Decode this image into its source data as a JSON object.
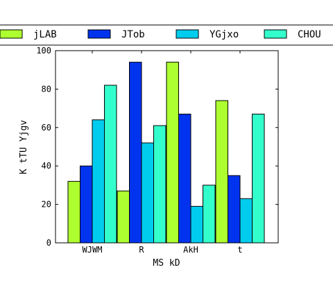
{
  "chart_data": {
    "type": "bar",
    "title": "",
    "xlabel": "MS kD",
    "ylabel": "K tTU Yjgv",
    "categories": [
      "WJWM",
      "R",
      "AkH",
      "t"
    ],
    "series": [
      {
        "name": "jLAB",
        "color": "#adff2f",
        "values": [
          32,
          27,
          94,
          74
        ]
      },
      {
        "name": "JTob",
        "color": "#0033ee",
        "values": [
          40,
          94,
          67,
          35
        ]
      },
      {
        "name": "YGjxo",
        "color": "#00ccee",
        "values": [
          64,
          52,
          19,
          23
        ]
      },
      {
        "name": "CHOU",
        "color": "#33ffcc",
        "values": [
          82,
          61,
          30,
          67
        ]
      }
    ],
    "ylim": [
      0,
      100
    ],
    "yticks": [
      0,
      20,
      40,
      60,
      80,
      100
    ],
    "grid": false,
    "legend_position": "top"
  }
}
